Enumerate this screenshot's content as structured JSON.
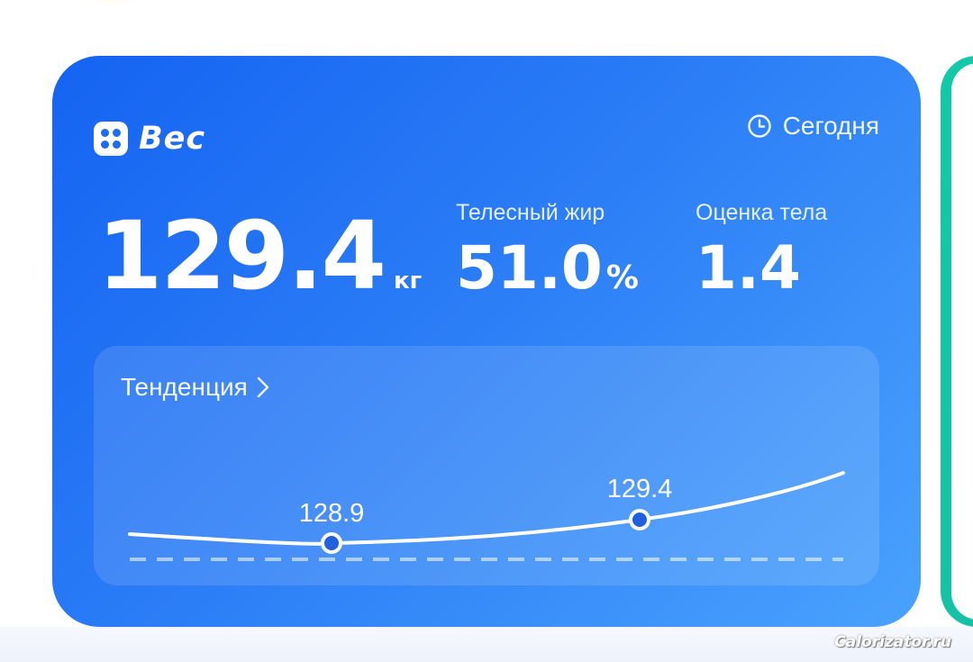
{
  "card": {
    "title": "Вес",
    "brand_icon": "dice-grid-icon",
    "date_icon": "clock-icon",
    "date": "Сегодня"
  },
  "weight": {
    "value": "129.4",
    "unit": "кг"
  },
  "body_fat": {
    "label": "Телесный жир",
    "value": "51.0",
    "unit": "%"
  },
  "body_score": {
    "label": "Оценка тела",
    "value": "1.4"
  },
  "trend": {
    "title": "Тенденция",
    "chevron_icon": "chevron-right-icon",
    "points": [
      {
        "label": "128.9",
        "value": 128.9
      },
      {
        "label": "129.4",
        "value": 129.4
      }
    ]
  },
  "colors": {
    "card_start": "#1563f2",
    "card_end": "#4aa2fd",
    "next_card": "#12c9a7",
    "point_fill": "#1f5fe0"
  },
  "watermark": "Calorizator.ru"
}
